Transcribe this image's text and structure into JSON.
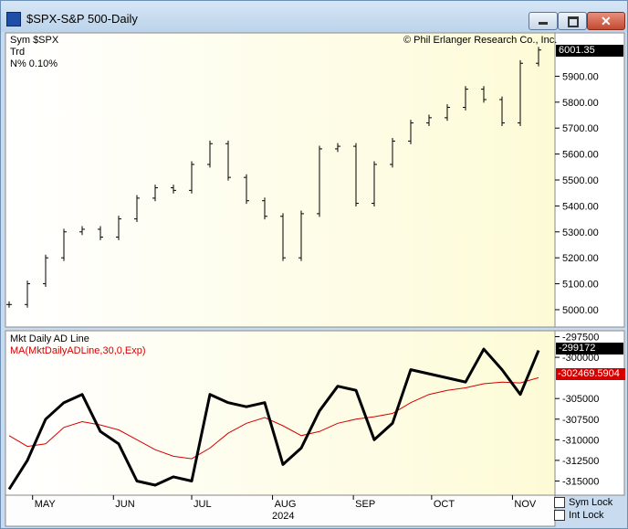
{
  "window": {
    "title": "$SPX-S&P 500-Daily",
    "buttons": {
      "minimize": "minimize",
      "maximize": "maximize",
      "close": "✕"
    }
  },
  "main_panel": {
    "sym_label": "Sym",
    "sym_value": "$SPX",
    "trd_label": "Trd",
    "n_label": "N%",
    "n_value": "0.10%",
    "copyright": "© Phil Erlanger Research Co., Inc.",
    "current_value": "6001.35",
    "y_ticks": [
      "5900.00",
      "5800.00",
      "5700.00",
      "5600.00",
      "5500.00",
      "5400.00",
      "5300.00",
      "5200.00",
      "5100.00",
      "5000.00"
    ]
  },
  "lower_panel": {
    "name": "Mkt Daily AD Line",
    "ma_name": "MA(MktDailyADLine,30,0,Exp)",
    "current_value": "-299172",
    "ma_value": "-302469.5904",
    "y_ticks": [
      "-297500",
      "-300000",
      "-305000",
      "-307500",
      "-310000",
      "-312500",
      "-315000"
    ]
  },
  "x_axis": {
    "months": [
      "MAY",
      "JUN",
      "JUL",
      "AUG",
      "SEP",
      "OCT",
      "NOV"
    ],
    "year": "2024"
  },
  "controls": {
    "sym_lock": "Sym Lock",
    "int_lock": "Int Lock"
  },
  "colors": {
    "price_bars": "#000000",
    "ad_line": "#000000",
    "ma_line": "#d40000",
    "panel_bg_left": "#ffffff",
    "panel_bg_right": "#fdfbd6"
  },
  "chart_data": [
    {
      "type": "ohlc",
      "title": "$SPX-S&P 500-Daily",
      "ylim": [
        4940,
        6060
      ],
      "x": [
        "2024-04-22",
        "2024-04-29",
        "2024-05-06",
        "2024-05-13",
        "2024-05-20",
        "2024-05-27",
        "2024-06-03",
        "2024-06-10",
        "2024-06-17",
        "2024-06-24",
        "2024-07-01",
        "2024-07-08",
        "2024-07-15",
        "2024-07-22",
        "2024-07-29",
        "2024-08-05",
        "2024-08-12",
        "2024-08-19",
        "2024-08-26",
        "2024-09-02",
        "2024-09-09",
        "2024-09-16",
        "2024-09-23",
        "2024-09-30",
        "2024-10-07",
        "2024-10-14",
        "2024-10-21",
        "2024-10-28",
        "2024-11-04",
        "2024-11-11"
      ],
      "close": [
        5020,
        5100,
        5200,
        5300,
        5310,
        5280,
        5350,
        5430,
        5470,
        5460,
        5560,
        5640,
        5510,
        5420,
        5360,
        5200,
        5370,
        5620,
        5630,
        5410,
        5560,
        5650,
        5720,
        5740,
        5780,
        5850,
        5810,
        5720,
        5950,
        6001
      ]
    },
    {
      "type": "line",
      "title": "Mkt Daily AD Line",
      "ylim": [
        -316500,
        -297000
      ],
      "x": [
        "2024-04-22",
        "2024-04-29",
        "2024-05-06",
        "2024-05-13",
        "2024-05-20",
        "2024-05-27",
        "2024-06-03",
        "2024-06-10",
        "2024-06-17",
        "2024-06-24",
        "2024-07-01",
        "2024-07-08",
        "2024-07-15",
        "2024-07-22",
        "2024-07-29",
        "2024-08-05",
        "2024-08-12",
        "2024-08-19",
        "2024-08-26",
        "2024-09-02",
        "2024-09-09",
        "2024-09-16",
        "2024-09-23",
        "2024-09-30",
        "2024-10-07",
        "2024-10-14",
        "2024-10-21",
        "2024-10-28",
        "2024-11-04",
        "2024-11-11"
      ],
      "series": [
        {
          "name": "Mkt Daily AD Line",
          "values": [
            -316000,
            -312500,
            -307500,
            -305500,
            -304500,
            -309000,
            -310500,
            -315000,
            -315500,
            -314500,
            -315000,
            -304500,
            -305500,
            -306000,
            -305500,
            -313000,
            -311000,
            -306500,
            -303500,
            -304000,
            -310000,
            -308000,
            -301500,
            -302000,
            -302500,
            -303000,
            -299000,
            -301500,
            -304500,
            -299172
          ]
        },
        {
          "name": "MA(MktDailyADLine,30,0,Exp)",
          "values": [
            -309500,
            -310800,
            -310500,
            -308500,
            -307800,
            -308200,
            -308800,
            -310000,
            -311200,
            -312000,
            -312300,
            -311000,
            -309200,
            -308000,
            -307300,
            -308300,
            -309500,
            -309000,
            -308000,
            -307500,
            -307200,
            -306800,
            -305500,
            -304500,
            -304000,
            -303700,
            -303200,
            -303000,
            -303100,
            -302470
          ]
        }
      ]
    }
  ]
}
